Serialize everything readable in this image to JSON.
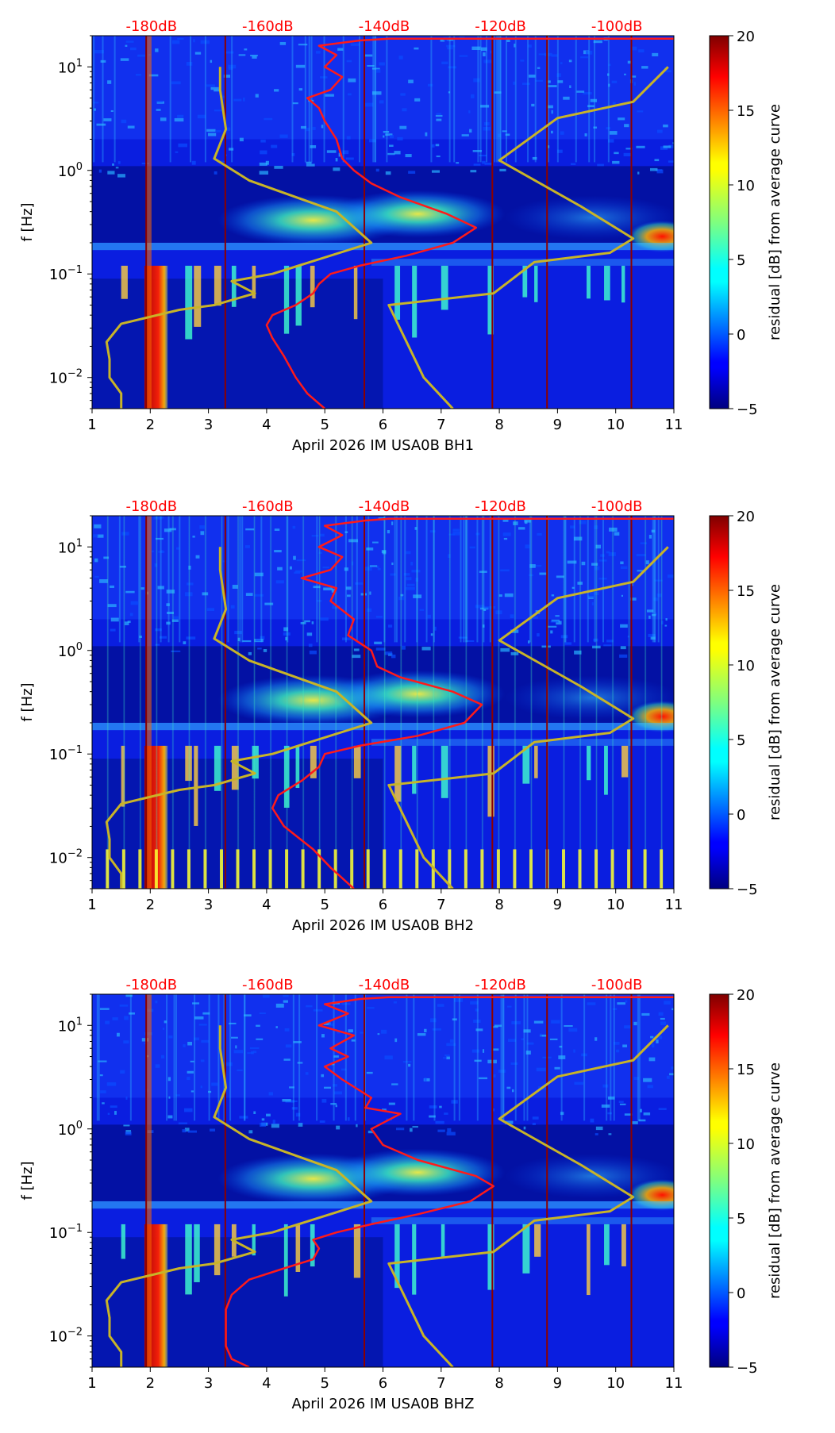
{
  "chart_data": [
    {
      "type": "heatmap",
      "title": "",
      "xlabel": "April 2026 IM USA0B  BH1",
      "ylabel": "f [Hz]",
      "xlim": [
        1,
        11
      ],
      "ylim": [
        0.005,
        20
      ],
      "yscale": "log",
      "xticks": [
        "1",
        "2",
        "3",
        "4",
        "5",
        "6",
        "7",
        "8",
        "9",
        "10",
        "11"
      ],
      "yticks": [
        {
          "value": 0.01,
          "base": "10",
          "exp": "−2"
        },
        {
          "value": 0.1,
          "base": "10",
          "exp": "−1"
        },
        {
          "value": 1,
          "base": "10",
          "exp": "0"
        },
        {
          "value": 10,
          "base": "10",
          "exp": "1"
        }
      ],
      "db_labels": [
        "-180dB",
        "-160dB",
        "-140dB",
        "-120dB",
        "-100dB"
      ],
      "db_label_positions": [
        2.02,
        4.02,
        6.02,
        8.02,
        10.02
      ],
      "vertical_lines": [
        1.93,
        3.29,
        5.68,
        7.88,
        8.82,
        10.27
      ],
      "colorbar": {
        "label": "residual [dB] from average curve",
        "range": [
          -5,
          20
        ],
        "ticks": [
          "−5",
          "0",
          "5",
          "10",
          "15",
          "20"
        ],
        "colormap": "jet"
      },
      "grid": false,
      "series": [
        {
          "color": "#ff1a1a",
          "points": [
            [
              5.0,
              0.005
            ],
            [
              4.7,
              0.007
            ],
            [
              4.5,
              0.01
            ],
            [
              4.3,
              0.016
            ],
            [
              4.1,
              0.024
            ],
            [
              4.0,
              0.032
            ],
            [
              4.1,
              0.04
            ],
            [
              4.5,
              0.05
            ],
            [
              4.8,
              0.065
            ],
            [
              4.9,
              0.08
            ],
            [
              5.1,
              0.1
            ],
            [
              5.6,
              0.12
            ],
            [
              6.4,
              0.15
            ],
            [
              7.2,
              0.2
            ],
            [
              7.6,
              0.28
            ],
            [
              7.1,
              0.38
            ],
            [
              6.3,
              0.55
            ],
            [
              5.8,
              0.75
            ],
            [
              5.5,
              1.0
            ],
            [
              5.3,
              1.3
            ],
            [
              5.2,
              2.0
            ],
            [
              5.0,
              3.0
            ],
            [
              4.9,
              4.0
            ],
            [
              4.7,
              5.0
            ],
            [
              5.1,
              6.0
            ],
            [
              5.3,
              8.0
            ],
            [
              5.0,
              10.0
            ],
            [
              5.2,
              13.0
            ],
            [
              4.9,
              16.0
            ],
            [
              5.6,
              18.0
            ],
            [
              6.1,
              18.7
            ],
            [
              11.0,
              18.7
            ]
          ]
        },
        {
          "color": "#c8b428",
          "points": [
            [
              1.5,
              0.005
            ],
            [
              1.5,
              0.007
            ],
            [
              1.3,
              0.01
            ],
            [
              1.3,
              0.015
            ],
            [
              1.25,
              0.022
            ],
            [
              1.5,
              0.033
            ],
            [
              2.5,
              0.045
            ],
            [
              3.1,
              0.05
            ],
            [
              3.8,
              0.065
            ],
            [
              3.4,
              0.085
            ],
            [
              4.1,
              0.1
            ],
            [
              5.8,
              0.2
            ],
            [
              5.2,
              0.4
            ],
            [
              3.7,
              0.8
            ],
            [
              3.1,
              1.3
            ],
            [
              3.3,
              2.5
            ],
            [
              3.2,
              6.0
            ],
            [
              3.2,
              10.0
            ]
          ]
        },
        {
          "color": "#c8b428",
          "points": [
            [
              7.2,
              0.005
            ],
            [
              6.7,
              0.01
            ],
            [
              6.1,
              0.05
            ],
            [
              7.9,
              0.065
            ],
            [
              8.6,
              0.13
            ],
            [
              9.9,
              0.16
            ],
            [
              10.3,
              0.22
            ],
            [
              9.4,
              0.45
            ],
            [
              8.0,
              1.25
            ],
            [
              9.0,
              3.2
            ],
            [
              10.3,
              4.6
            ],
            [
              10.9,
              10.0
            ]
          ]
        }
      ]
    },
    {
      "type": "heatmap",
      "title": "",
      "xlabel": "April 2026 IM USA0B  BH2",
      "ylabel": "f [Hz]",
      "xlim": [
        1,
        11
      ],
      "ylim": [
        0.005,
        20
      ],
      "yscale": "log",
      "xticks": [
        "1",
        "2",
        "3",
        "4",
        "5",
        "6",
        "7",
        "8",
        "9",
        "10",
        "11"
      ],
      "yticks": [
        {
          "value": 0.01,
          "base": "10",
          "exp": "−2"
        },
        {
          "value": 0.1,
          "base": "10",
          "exp": "−1"
        },
        {
          "value": 1,
          "base": "10",
          "exp": "0"
        },
        {
          "value": 10,
          "base": "10",
          "exp": "1"
        }
      ],
      "db_labels": [
        "-180dB",
        "-160dB",
        "-140dB",
        "-120dB",
        "-100dB"
      ],
      "db_label_positions": [
        2.02,
        4.02,
        6.02,
        8.02,
        10.02
      ],
      "vertical_lines": [
        1.93,
        3.29,
        5.68,
        7.88,
        8.82,
        10.27
      ],
      "colorbar": {
        "label": "residual [dB] from average curve",
        "range": [
          -5,
          20
        ],
        "ticks": [
          "−5",
          "0",
          "5",
          "10",
          "15",
          "20"
        ],
        "colormap": "jet"
      },
      "grid": false,
      "series": [
        {
          "color": "#ff1a1a",
          "points": [
            [
              5.5,
              0.005
            ],
            [
              5.1,
              0.008
            ],
            [
              4.8,
              0.012
            ],
            [
              4.3,
              0.02
            ],
            [
              4.1,
              0.03
            ],
            [
              4.2,
              0.04
            ],
            [
              4.6,
              0.055
            ],
            [
              4.9,
              0.075
            ],
            [
              5.0,
              0.1
            ],
            [
              5.6,
              0.12
            ],
            [
              6.6,
              0.15
            ],
            [
              7.4,
              0.2
            ],
            [
              7.7,
              0.3
            ],
            [
              7.2,
              0.4
            ],
            [
              6.3,
              0.55
            ],
            [
              5.9,
              0.7
            ],
            [
              5.8,
              1.0
            ],
            [
              5.4,
              1.4
            ],
            [
              5.5,
              2.0
            ],
            [
              5.1,
              3.0
            ],
            [
              5.2,
              4.0
            ],
            [
              4.6,
              5.0
            ],
            [
              5.1,
              6.0
            ],
            [
              5.3,
              8.0
            ],
            [
              4.9,
              10.0
            ],
            [
              5.3,
              13.0
            ],
            [
              5.0,
              16.0
            ],
            [
              5.7,
              18.0
            ],
            [
              6.1,
              18.7
            ],
            [
              11.0,
              18.7
            ]
          ]
        },
        {
          "color": "#c8b428",
          "points": [
            [
              1.5,
              0.005
            ],
            [
              1.5,
              0.007
            ],
            [
              1.3,
              0.01
            ],
            [
              1.3,
              0.015
            ],
            [
              1.25,
              0.022
            ],
            [
              1.5,
              0.033
            ],
            [
              2.5,
              0.045
            ],
            [
              3.1,
              0.05
            ],
            [
              3.8,
              0.065
            ],
            [
              3.4,
              0.085
            ],
            [
              4.1,
              0.1
            ],
            [
              5.8,
              0.2
            ],
            [
              5.2,
              0.4
            ],
            [
              3.7,
              0.8
            ],
            [
              3.1,
              1.3
            ],
            [
              3.3,
              2.5
            ],
            [
              3.2,
              6.0
            ],
            [
              3.2,
              10.0
            ]
          ]
        },
        {
          "color": "#c8b428",
          "points": [
            [
              7.2,
              0.005
            ],
            [
              6.7,
              0.01
            ],
            [
              6.1,
              0.05
            ],
            [
              7.9,
              0.065
            ],
            [
              8.6,
              0.13
            ],
            [
              9.9,
              0.16
            ],
            [
              10.3,
              0.22
            ],
            [
              9.4,
              0.45
            ],
            [
              8.0,
              1.25
            ],
            [
              9.0,
              3.2
            ],
            [
              10.3,
              4.6
            ],
            [
              10.9,
              10.0
            ]
          ]
        }
      ]
    },
    {
      "type": "heatmap",
      "title": "",
      "xlabel": "April 2026 IM USA0B  BHZ",
      "ylabel": "f [Hz]",
      "xlim": [
        1,
        11
      ],
      "ylim": [
        0.005,
        20
      ],
      "yscale": "log",
      "xticks": [
        "1",
        "2",
        "3",
        "4",
        "5",
        "6",
        "7",
        "8",
        "9",
        "10",
        "11"
      ],
      "yticks": [
        {
          "value": 0.01,
          "base": "10",
          "exp": "−2"
        },
        {
          "value": 0.1,
          "base": "10",
          "exp": "−1"
        },
        {
          "value": 1,
          "base": "10",
          "exp": "0"
        },
        {
          "value": 10,
          "base": "10",
          "exp": "1"
        }
      ],
      "db_labels": [
        "-180dB",
        "-160dB",
        "-140dB",
        "-120dB",
        "-100dB"
      ],
      "db_label_positions": [
        2.02,
        4.02,
        6.02,
        8.02,
        10.02
      ],
      "vertical_lines": [
        1.93,
        3.29,
        5.68,
        7.88,
        8.82,
        10.27
      ],
      "colorbar": {
        "label": "residual [dB] from average curve",
        "range": [
          -5,
          20
        ],
        "ticks": [
          "−5",
          "0",
          "5",
          "10",
          "15",
          "20"
        ],
        "colormap": "jet"
      },
      "grid": false,
      "series": [
        {
          "color": "#ff1a1a",
          "points": [
            [
              3.7,
              0.005
            ],
            [
              3.4,
              0.006
            ],
            [
              3.3,
              0.008
            ],
            [
              3.3,
              0.012
            ],
            [
              3.3,
              0.018
            ],
            [
              3.4,
              0.025
            ],
            [
              3.7,
              0.035
            ],
            [
              4.3,
              0.045
            ],
            [
              4.8,
              0.055
            ],
            [
              4.9,
              0.07
            ],
            [
              4.8,
              0.085
            ],
            [
              5.2,
              0.1
            ],
            [
              5.8,
              0.12
            ],
            [
              6.6,
              0.15
            ],
            [
              7.5,
              0.2
            ],
            [
              7.9,
              0.28
            ],
            [
              7.6,
              0.35
            ],
            [
              6.6,
              0.5
            ],
            [
              6.0,
              0.7
            ],
            [
              5.8,
              1.0
            ],
            [
              6.3,
              1.4
            ],
            [
              5.7,
              1.6
            ],
            [
              5.8,
              2.0
            ],
            [
              5.3,
              3.0
            ],
            [
              5.0,
              4.0
            ],
            [
              5.4,
              5.0
            ],
            [
              5.1,
              6.0
            ],
            [
              5.5,
              8.0
            ],
            [
              4.9,
              10.0
            ],
            [
              5.4,
              13.0
            ],
            [
              5.0,
              16.0
            ],
            [
              5.6,
              18.0
            ],
            [
              6.1,
              18.7
            ],
            [
              11.0,
              18.7
            ]
          ]
        },
        {
          "color": "#c8b428",
          "points": [
            [
              1.5,
              0.005
            ],
            [
              1.5,
              0.007
            ],
            [
              1.3,
              0.01
            ],
            [
              1.3,
              0.015
            ],
            [
              1.25,
              0.022
            ],
            [
              1.5,
              0.033
            ],
            [
              2.5,
              0.045
            ],
            [
              3.1,
              0.05
            ],
            [
              3.8,
              0.065
            ],
            [
              3.4,
              0.085
            ],
            [
              4.1,
              0.1
            ],
            [
              5.8,
              0.2
            ],
            [
              5.2,
              0.4
            ],
            [
              3.7,
              0.8
            ],
            [
              3.1,
              1.3
            ],
            [
              3.3,
              2.5
            ],
            [
              3.2,
              6.0
            ],
            [
              3.2,
              10.0
            ]
          ]
        },
        {
          "color": "#c8b428",
          "points": [
            [
              7.2,
              0.005
            ],
            [
              6.7,
              0.01
            ],
            [
              6.1,
              0.05
            ],
            [
              7.9,
              0.065
            ],
            [
              8.6,
              0.13
            ],
            [
              9.9,
              0.16
            ],
            [
              10.3,
              0.22
            ],
            [
              9.4,
              0.45
            ],
            [
              8.0,
              1.25
            ],
            [
              9.0,
              3.2
            ],
            [
              10.3,
              4.6
            ],
            [
              10.9,
              10.0
            ]
          ]
        }
      ]
    }
  ]
}
